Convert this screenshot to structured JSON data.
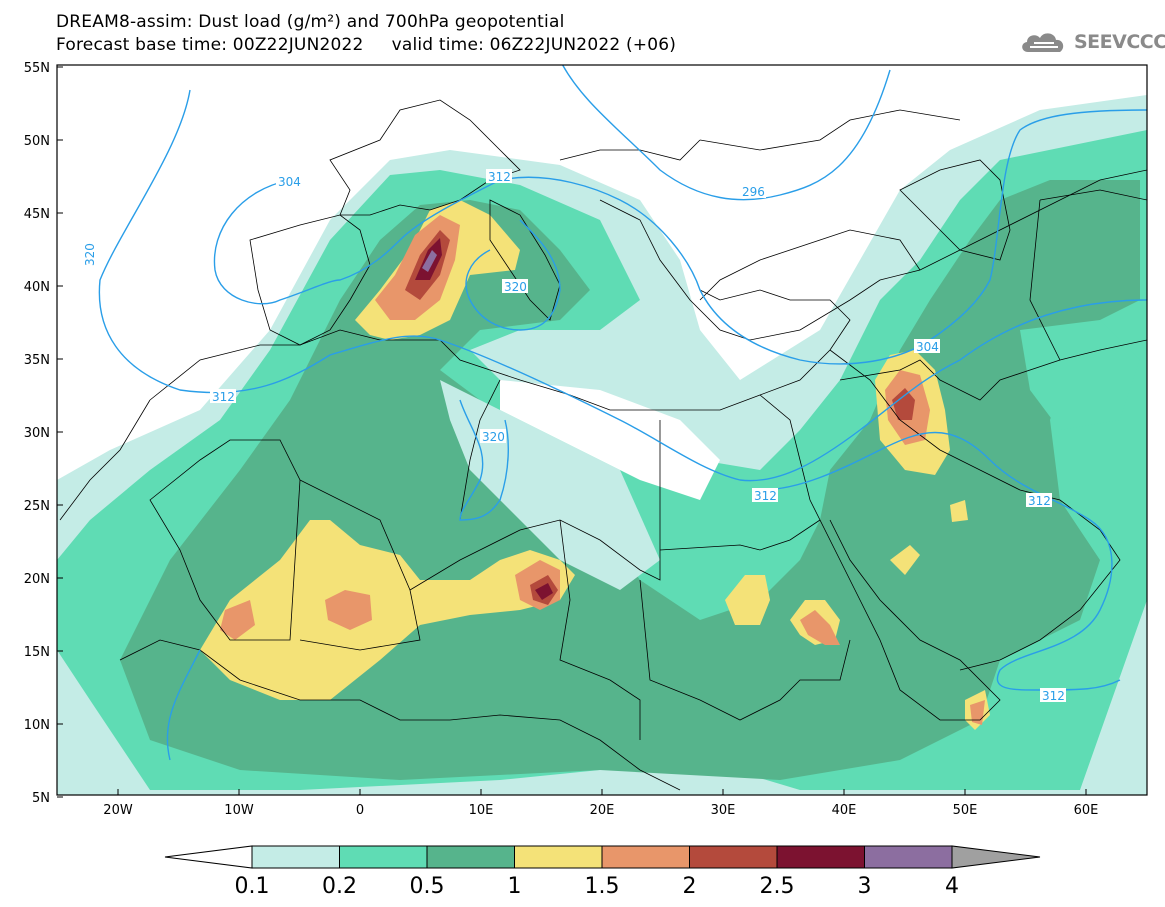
{
  "header": {
    "title_line1": "DREAM8-assim: Dust load (g/m²) and 700hPa geopotential",
    "title_line2": "Forecast base time: 00Z22JUN2022     valid time: 06Z22JUN2022 (+06)"
  },
  "logo": {
    "text": "SEEVCCC",
    "icon": "cloud-logo-icon"
  },
  "map": {
    "lat_labels": [
      "55N",
      "50N",
      "45N",
      "40N",
      "35N",
      "30N",
      "25N",
      "20N",
      "15N",
      "10N",
      "5N"
    ],
    "lon_labels": [
      "20W",
      "10W",
      "0",
      "10E",
      "20E",
      "30E",
      "40E",
      "50E",
      "60E"
    ],
    "contour_labels": [
      "304",
      "312",
      "320",
      "296",
      "312",
      "320",
      "304",
      "312",
      "312",
      "312",
      "320"
    ]
  },
  "colorbar": {
    "tick_labels": [
      "0.1",
      "0.2",
      "0.5",
      "1",
      "1.5",
      "2",
      "2.5",
      "3",
      "4"
    ],
    "colors": [
      "#c4ece6",
      "#5fdcb4",
      "#56b48c",
      "#f4e278",
      "#e8966a",
      "#b44a3c",
      "#7c1230",
      "#8c6ea0"
    ],
    "under_color": "#ffffff",
    "over_color": "#a0a0a0"
  }
}
